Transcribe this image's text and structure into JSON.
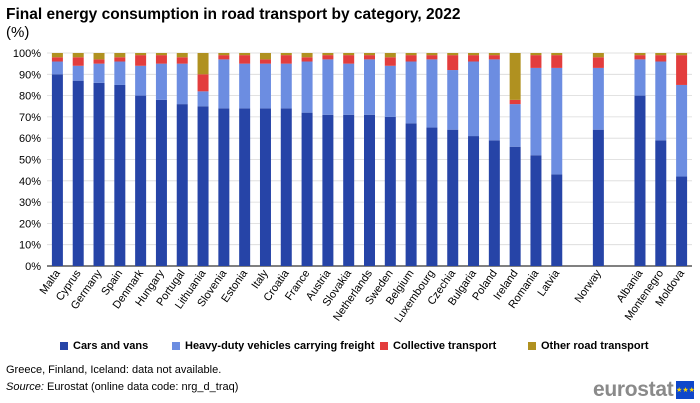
{
  "header": {
    "title": "Final energy consumption in road transport by category, 2022",
    "unit": "(%)"
  },
  "chart_data": {
    "type": "bar",
    "stacked": true,
    "ylim": [
      0,
      100
    ],
    "yticks": [
      "0%",
      "10%",
      "20%",
      "30%",
      "40%",
      "50%",
      "60%",
      "70%",
      "80%",
      "90%",
      "100%"
    ],
    "categories": [
      "Malta",
      "Cyprus",
      "Germany",
      "Spain",
      "Denmark",
      "Hungary",
      "Portugal",
      "Lithuania",
      "Slovenia",
      "Estonia",
      "Italy",
      "Croatia",
      "France",
      "Austria",
      "Slovakia",
      "Netherlands",
      "Sweden",
      "Belgium",
      "Luxembourg",
      "Czechia",
      "Bulgaria",
      "Poland",
      "Ireland",
      "Romania",
      "Latvia",
      "",
      "Norway",
      "",
      "Albania",
      "Montenegro",
      "Moldova"
    ],
    "series": [
      {
        "name": "Cars and vans",
        "color": "#2644a7",
        "values": [
          90,
          87,
          86,
          85,
          80,
          78,
          76,
          75,
          74,
          74,
          74,
          74,
          72,
          71,
          71,
          71,
          70,
          67,
          65,
          64,
          61,
          59,
          56,
          52,
          43,
          null,
          64,
          null,
          80,
          59,
          42
        ]
      },
      {
        "name": "Heavy-duty vehicles carrying freight",
        "color": "#6c8de1",
        "values": [
          6,
          7,
          9,
          11,
          14,
          17,
          19,
          7,
          23,
          21,
          21,
          21,
          24,
          26,
          24,
          26,
          24,
          29,
          32,
          28,
          35,
          38,
          20,
          41,
          50,
          null,
          29,
          null,
          17,
          37,
          43
        ]
      },
      {
        "name": "Collective transport",
        "color": "#e33d3d",
        "values": [
          2,
          4,
          2,
          2,
          5,
          4,
          3,
          8,
          2,
          4,
          2,
          4,
          2,
          2,
          4,
          2,
          4,
          3,
          2,
          7,
          3,
          2,
          2,
          6,
          6,
          null,
          5,
          null,
          2,
          3,
          14
        ]
      },
      {
        "name": "Other road transport",
        "color": "#b09120",
        "values": [
          2,
          2,
          3,
          2,
          1,
          1,
          2,
          10,
          1,
          1,
          3,
          1,
          2,
          1,
          1,
          1,
          2,
          1,
          1,
          1,
          1,
          1,
          22,
          1,
          1,
          null,
          2,
          null,
          1,
          1,
          1
        ]
      }
    ]
  },
  "notes": {
    "missing": "Greece, Finland, Iceland: data not available.",
    "source_label": "Source:",
    "source_text": " Eurostat (online data code: nrg_d_traq)"
  },
  "logo": {
    "text": "eurostat",
    "flag_icon": "eu-flag-icon"
  }
}
